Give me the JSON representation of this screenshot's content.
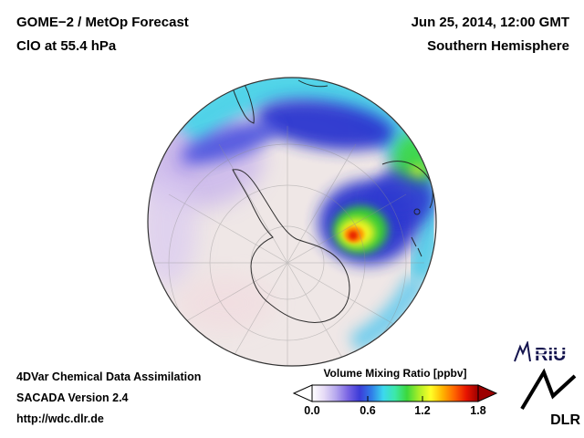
{
  "header": {
    "title_line1": "GOME−2 / MetOp Forecast",
    "title_line2": "ClO at 55.4 hPa",
    "date_line": "Jun 25, 2014, 12:00 GMT",
    "region_line": "Southern Hemisphere"
  },
  "footer": {
    "line1": "4DVar Chemical Data Assimilation",
    "line2": "SACADA Version 2.4",
    "line3": "http://wdc.dlr.de"
  },
  "colorbar": {
    "title": "Volume Mixing Ratio [ppbv]",
    "ticks": [
      "0.0",
      "0.6",
      "1.2",
      "1.8"
    ],
    "min": 0.0,
    "max": 1.8,
    "colors": [
      "#ffffff",
      "#e6dbf6",
      "#b6a8ee",
      "#7b66e4",
      "#3c3cd8",
      "#2f7ce8",
      "#3cd8ee",
      "#3ce8a8",
      "#3cd83c",
      "#aaee28",
      "#ffff28",
      "#ffb400",
      "#ff6400",
      "#e81400",
      "#9c0000"
    ]
  },
  "logos": {
    "riu": "RIU",
    "dlr": "DLR"
  },
  "chart_data": {
    "type": "heatmap",
    "title": "GOME−2 / MetOp Forecast — ClO at 55.4 hPa",
    "datetime": "Jun 25, 2014, 12:00 GMT",
    "region": "Southern Hemisphere",
    "projection": "South-Pole-centered hemispheric globe with latitude/longitude graticule and coastlines",
    "colorbar": {
      "label": "Volume Mixing Ratio [ppbv]",
      "range": [
        0.0,
        1.8
      ],
      "tick_values": [
        0.0,
        0.6,
        1.2,
        1.8
      ]
    },
    "field_features": [
      {
        "feature": "Antarctic interior",
        "approx_value_ppbv": 0.05,
        "color": "pale pinkish-white"
      },
      {
        "feature": "outer-latitude band along the limb, strongest on the northern/top sector",
        "approx_value_ppbv": 0.5,
        "color": "cyan"
      },
      {
        "feature": "curved band just inside the cyan rim, upper-center to right",
        "approx_value_ppbv": 0.35,
        "color": "deep blue"
      },
      {
        "feature": "transition fringe between blue band and interior",
        "approx_value_ppbv": 0.15,
        "color": "lavender-purple"
      },
      {
        "feature": "localized maximum southeast of center (near 60S sector)",
        "approx_value_ppbv": 1.5,
        "color": "red-orange core, yellow/green rings, blue halo"
      },
      {
        "feature": "secondary patch at eastern limb",
        "approx_value_ppbv": 0.9,
        "color": "green with yellow-green speck"
      }
    ]
  }
}
